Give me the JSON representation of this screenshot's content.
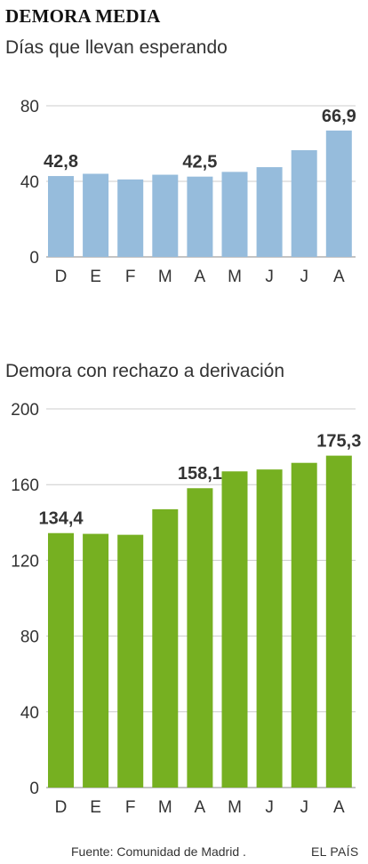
{
  "header": {
    "title": "DEMORA MEDIA"
  },
  "footer": {
    "source": "Fuente: Comunidad de Madrid .",
    "brand": "EL PAÍS"
  },
  "colors": {
    "chart1_bar": "#96bcdc",
    "chart2_bar": "#76b021",
    "grid": "#cccccc",
    "text": "#333333"
  },
  "chart_data": [
    {
      "type": "bar",
      "title": "Días que llevan esperando",
      "categories": [
        "D",
        "E",
        "F",
        "M",
        "A",
        "M",
        "J",
        "J",
        "A"
      ],
      "values": [
        42.8,
        44,
        41,
        43.5,
        42.5,
        45,
        47.5,
        56.5,
        66.9
      ],
      "ylim": [
        0,
        80
      ],
      "yticks": [
        "0",
        "40",
        "80"
      ],
      "data_labels": [
        "42,8",
        "",
        "",
        "",
        "42,5",
        "",
        "",
        "",
        "66,9"
      ],
      "grid": true
    },
    {
      "type": "bar",
      "title": "Demora con rechazo a derivación",
      "categories": [
        "D",
        "E",
        "F",
        "M",
        "A",
        "M",
        "J",
        "J",
        "A"
      ],
      "values": [
        134.4,
        134,
        133.5,
        147,
        158.1,
        167,
        168,
        171.5,
        175.3
      ],
      "ylim": [
        0,
        200
      ],
      "yticks": [
        "0",
        "40",
        "80",
        "120",
        "160",
        "200"
      ],
      "data_labels": [
        "134,4",
        "",
        "",
        "",
        "158,1",
        "",
        "",
        "",
        "175,3"
      ],
      "grid": true
    }
  ]
}
